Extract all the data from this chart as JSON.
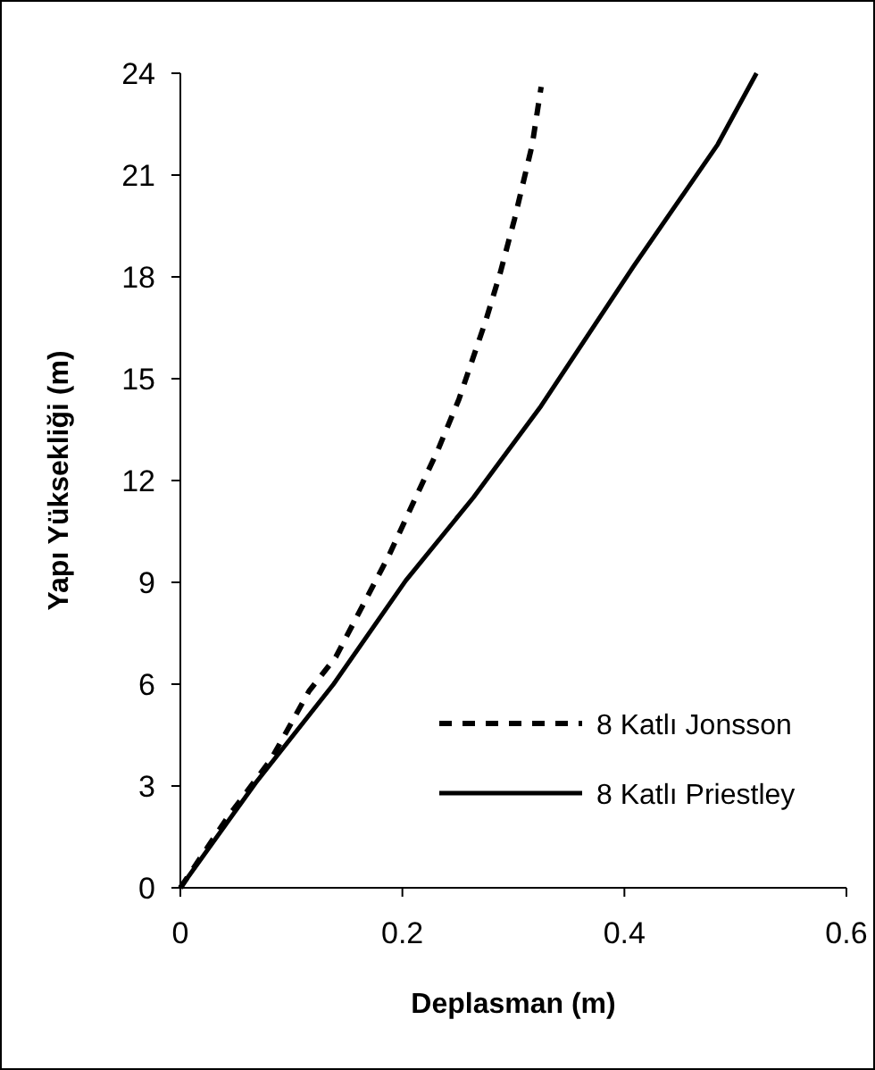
{
  "chart_data": {
    "type": "line",
    "xlabel": "Deplasman (m)",
    "ylabel": "Yapı Yüksekliği (m)",
    "xlim": [
      0,
      0.6
    ],
    "xticks": [
      0,
      0.2,
      0.4,
      0.6
    ],
    "ylim": [
      0,
      24
    ],
    "yticks": [
      0,
      3,
      6,
      9,
      12,
      15,
      18,
      21,
      24
    ],
    "legend": "bottom right",
    "grid": false,
    "marker": "none",
    "series": [
      {
        "name": "8 Katlı Jonsson",
        "color": "#000000",
        "line_style": "dashed",
        "x": [
          0,
          0.042,
          0.082,
          0.116,
          0.14,
          0.164,
          0.188,
          0.212,
          0.232,
          0.251,
          0.275,
          0.288,
          0.301,
          0.317,
          0.325
        ],
        "values": [
          0,
          2.05,
          3.8,
          5.8,
          6.8,
          8.3,
          9.8,
          11.5,
          12.9,
          14.4,
          16.7,
          18.1,
          19.7,
          21.9,
          23.6
        ]
      },
      {
        "name": "8 Katlı Priestley",
        "color": "#000000",
        "line_style": "solid",
        "x": [
          0,
          0.068,
          0.138,
          0.203,
          0.264,
          0.325,
          0.408,
          0.484,
          0.519
        ],
        "values": [
          0,
          3.1,
          6.0,
          9.05,
          11.5,
          14.2,
          18.3,
          21.9,
          24
        ]
      }
    ]
  }
}
